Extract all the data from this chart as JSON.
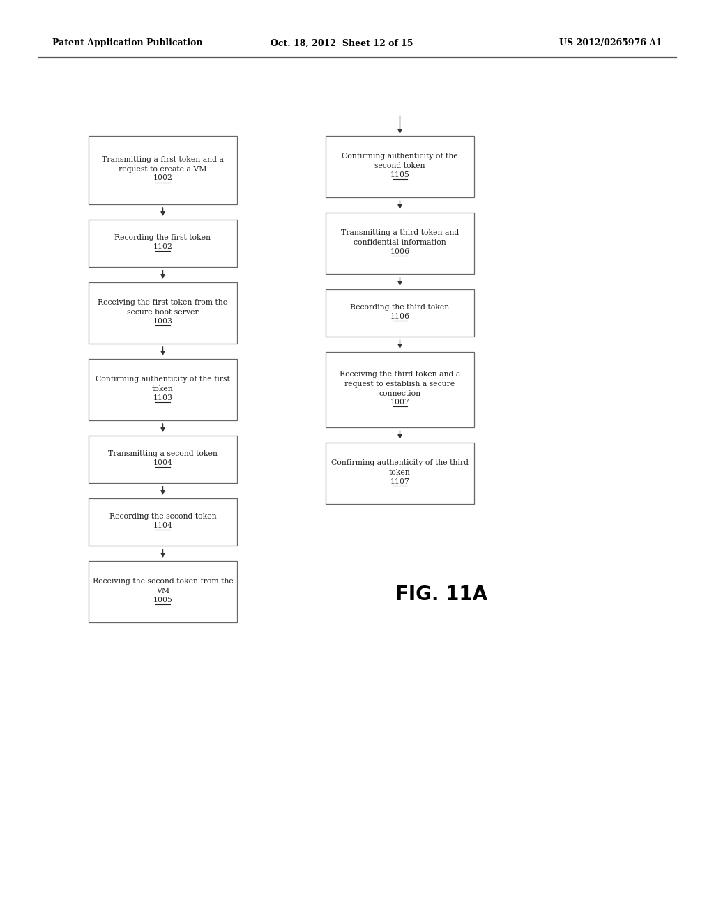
{
  "header_left": "Patent Application Publication",
  "header_mid": "Oct. 18, 2012  Sheet 12 of 15",
  "header_right": "US 2012/0265976 A1",
  "fig_label": "FIG. 11A",
  "left_boxes": [
    {
      "lines": [
        "Transmitting a first token and a",
        "request to create a VM"
      ],
      "num": "1002"
    },
    {
      "lines": [
        "Recording the first token"
      ],
      "num": "1102"
    },
    {
      "lines": [
        "Receiving the first token from the",
        "secure boot server"
      ],
      "num": "1003"
    },
    {
      "lines": [
        "Confirming authenticity of the first",
        "token"
      ],
      "num": "1103"
    },
    {
      "lines": [
        "Transmitting a second token"
      ],
      "num": "1004"
    },
    {
      "lines": [
        "Recording the second token"
      ],
      "num": "1104"
    },
    {
      "lines": [
        "Receiving the second token from the",
        "VM"
      ],
      "num": "1005"
    }
  ],
  "right_boxes": [
    {
      "lines": [
        "Confirming authenticity of the",
        "second token"
      ],
      "num": "1105"
    },
    {
      "lines": [
        "Transmitting a third token and",
        "confidential information"
      ],
      "num": "1006"
    },
    {
      "lines": [
        "Recording the third token"
      ],
      "num": "1106"
    },
    {
      "lines": [
        "Receiving the third token and a",
        "request to establish a secure",
        "connection"
      ],
      "num": "1007"
    },
    {
      "lines": [
        "Confirming authenticity of the third",
        "token"
      ],
      "num": "1107"
    }
  ],
  "bg_color": "#ffffff",
  "box_edge_color": "#666666",
  "box_fill_color": "#ffffff",
  "text_color": "#222222",
  "arrow_color": "#333333",
  "header_color": "#000000"
}
